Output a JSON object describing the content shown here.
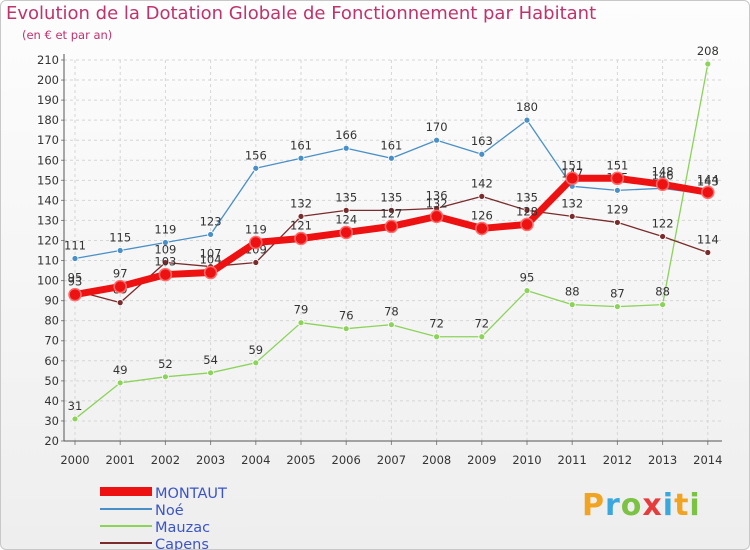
{
  "chart_data": {
    "type": "line",
    "title": "Evolution de la Dotation Globale de Fonctionnement par Habitant",
    "subtitle": "(en € et par an)",
    "xlabel": "",
    "ylabel": "",
    "ylim": [
      20,
      210
    ],
    "ytick_step": 10,
    "x": [
      "2000",
      "2001",
      "2002",
      "2003",
      "2004",
      "2005",
      "2006",
      "2007",
      "2008",
      "2009",
      "2010",
      "2011",
      "2012",
      "2013",
      "2014"
    ],
    "series": [
      {
        "name": "Noé",
        "color": "#4a90c8",
        "values": [
          111,
          115,
          119,
          123,
          156,
          161,
          166,
          161,
          170,
          163,
          180,
          147,
          145,
          146,
          143
        ],
        "labels": [
          "111",
          "115",
          "119",
          "123",
          "156",
          "161",
          "166",
          "161",
          "170",
          "163",
          "180",
          "147",
          "145",
          "146",
          "143"
        ]
      },
      {
        "name": "Mauzac",
        "color": "#8cd35a",
        "values": [
          31,
          49,
          52,
          54,
          59,
          79,
          76,
          78,
          72,
          72,
          95,
          88,
          87,
          88,
          208
        ],
        "labels": [
          "31",
          "49",
          "52",
          "54",
          "59",
          "79",
          "76",
          "78",
          "72",
          "72",
          "95",
          "88",
          "87",
          "88",
          "208"
        ]
      },
      {
        "name": "Capens",
        "color": "#7a2b2b",
        "values": [
          95,
          89,
          109,
          107,
          109,
          132,
          135,
          135,
          136,
          142,
          135,
          132,
          129,
          122,
          114
        ],
        "labels": [
          "95",
          "89",
          "109",
          "107",
          "109",
          "132",
          "135",
          "135",
          "136",
          "142",
          "135",
          "132",
          "129",
          "122",
          "114"
        ]
      },
      {
        "name": "MONTAUT",
        "color": "#ee1111",
        "values": [
          93,
          97,
          103,
          104,
          119,
          121,
          124,
          127,
          132,
          126,
          128,
          151,
          151,
          148,
          144
        ],
        "labels": [
          "93",
          "97",
          "103",
          "104",
          "119",
          "121",
          "124",
          "127",
          "132",
          "126",
          "128",
          "151",
          "151",
          "148",
          "144"
        ]
      }
    ],
    "legend": [
      "MONTAUT",
      "Noé",
      "Mauzac",
      "Capens"
    ],
    "legend_position": "bottom-left"
  },
  "logo": {
    "text": "Proxiti",
    "letters": [
      "P",
      "r",
      "o",
      "x",
      "i",
      "t",
      "i"
    ]
  }
}
